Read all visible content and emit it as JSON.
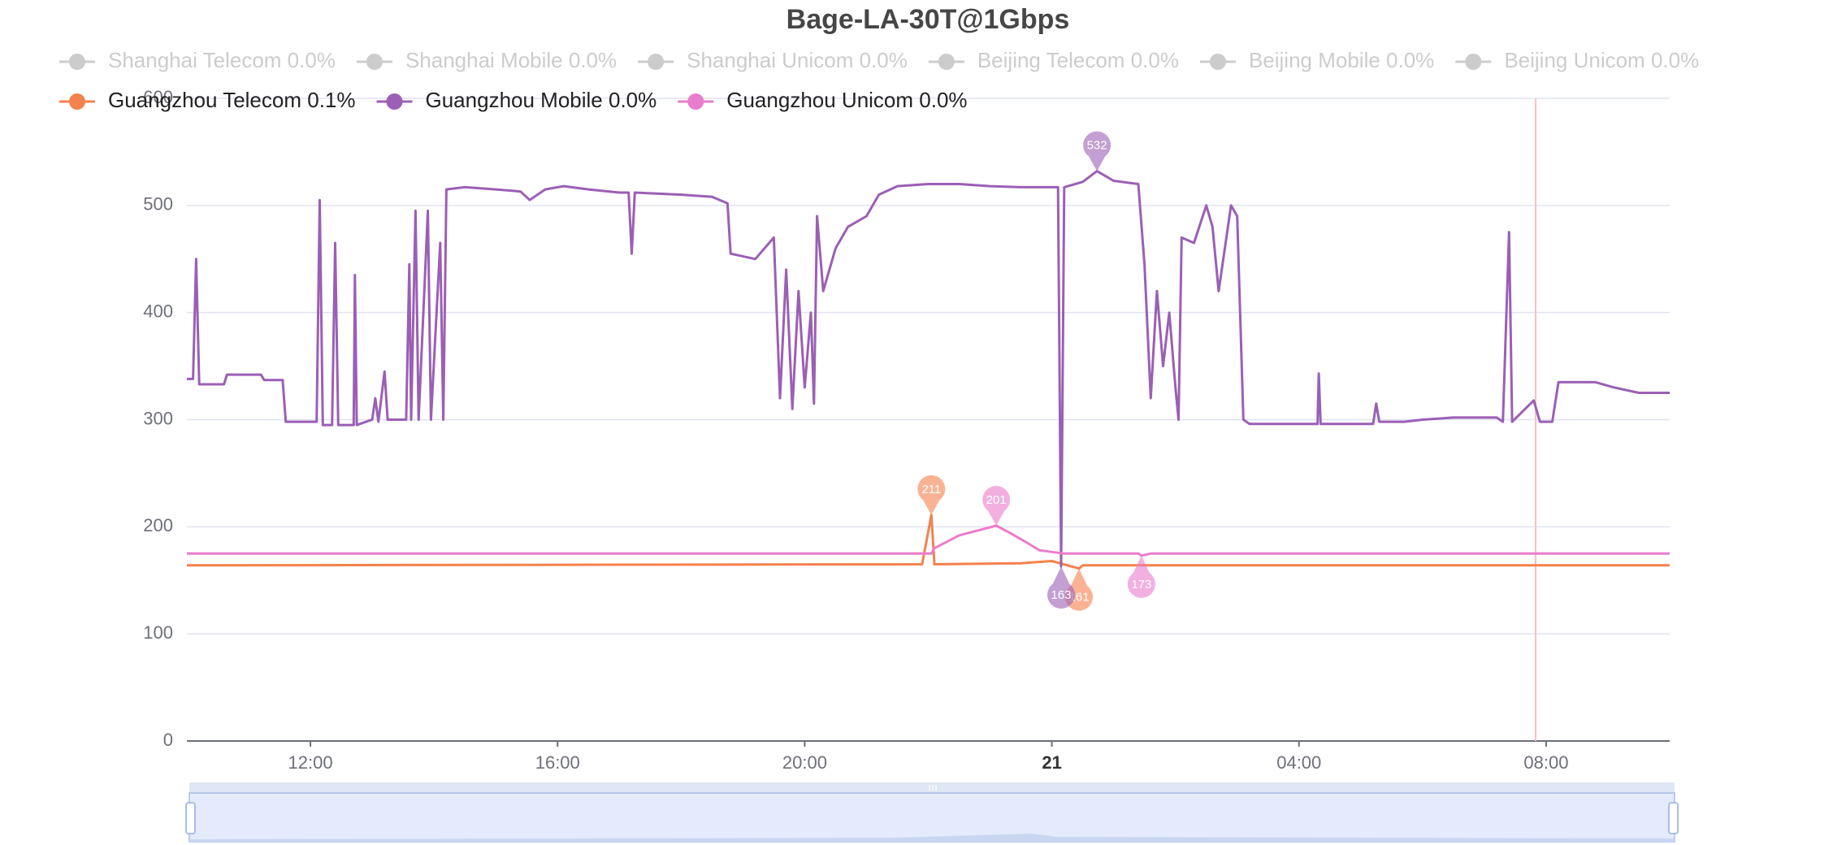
{
  "chart_data": {
    "type": "line",
    "title": "Bage-LA-30T@1Gbps",
    "xlim": [
      10,
      34
    ],
    "xticks": [
      {
        "value": 12,
        "label": "12:00"
      },
      {
        "value": 16,
        "label": "16:00"
      },
      {
        "value": 20,
        "label": "20:00"
      },
      {
        "value": 24,
        "label": "21",
        "bold": true
      },
      {
        "value": 28,
        "label": "04:00"
      },
      {
        "value": 32,
        "label": "08:00"
      }
    ],
    "ylim": [
      0,
      600
    ],
    "yticks": [
      0,
      100,
      200,
      300,
      400,
      500,
      600
    ],
    "grid": true,
    "legend": "top",
    "series": [
      {
        "name": "Shanghai Telecom 0.0%",
        "color": "#cccccc",
        "selected": false
      },
      {
        "name": "Shanghai Mobile 0.0%",
        "color": "#cccccc",
        "selected": false
      },
      {
        "name": "Shanghai Unicom 0.0%",
        "color": "#cccccc",
        "selected": false
      },
      {
        "name": "Beijing Telecom 0.0%",
        "color": "#cccccc",
        "selected": false
      },
      {
        "name": "Beijing Mobile 0.0%",
        "color": "#cccccc",
        "selected": false
      },
      {
        "name": "Beijing Unicom 0.0%",
        "color": "#cccccc",
        "selected": false
      },
      {
        "name": "Guangzhou Telecom 0.1%",
        "color": "#f5814c",
        "selected": true,
        "x": [
          10,
          21.9,
          22.05,
          22.1,
          23.5,
          24.0,
          24.44,
          24.5,
          34
        ],
        "values": [
          164,
          165,
          211,
          165,
          166,
          168,
          161,
          164,
          164
        ],
        "mark_points": [
          {
            "x": 22.05,
            "value": 211,
            "kind": "max"
          },
          {
            "x": 24.44,
            "value": 161,
            "kind": "min"
          }
        ]
      },
      {
        "name": "Guangzhou Mobile 0.0%",
        "color": "#9b5fb5",
        "selected": true,
        "x": [
          10.0,
          10.1,
          10.15,
          10.2,
          10.6,
          10.65,
          11.2,
          11.25,
          11.55,
          11.6,
          12.1,
          12.15,
          12.2,
          12.35,
          12.4,
          12.45,
          12.7,
          12.72,
          12.75,
          13.0,
          13.05,
          13.1,
          13.2,
          13.25,
          13.55,
          13.6,
          13.63,
          13.7,
          13.75,
          13.9,
          13.95,
          14.1,
          14.15,
          14.2,
          14.5,
          15.0,
          15.4,
          15.55,
          15.8,
          16.1,
          16.5,
          17.0,
          17.15,
          17.2,
          17.25,
          18.0,
          18.5,
          18.75,
          18.8,
          19.2,
          19.5,
          19.6,
          19.7,
          19.8,
          19.9,
          20.0,
          20.1,
          20.15,
          20.2,
          20.3,
          20.5,
          20.7,
          21.0,
          21.2,
          21.5,
          22.0,
          22.5,
          23.0,
          23.5,
          24.1,
          24.15,
          24.2,
          24.5,
          24.73,
          25.0,
          25.4,
          25.5,
          25.6,
          25.7,
          25.8,
          25.9,
          26.0,
          26.05,
          26.1,
          26.3,
          26.5,
          26.6,
          26.7,
          26.9,
          27.0,
          27.1,
          27.2,
          28.0,
          28.3,
          28.32,
          28.35,
          29.0,
          29.2,
          29.25,
          29.3,
          29.7,
          30.0,
          30.5,
          31.2,
          31.3,
          31.4,
          31.45,
          31.8,
          31.9,
          32.1,
          32.2,
          32.8,
          33.1,
          33.5,
          34.0
        ],
        "values": [
          338,
          338,
          450,
          333,
          333,
          342,
          342,
          337,
          337,
          298,
          298,
          505,
          295,
          295,
          465,
          295,
          295,
          435,
          295,
          300,
          320,
          298,
          345,
          300,
          300,
          445,
          300,
          495,
          300,
          495,
          300,
          465,
          300,
          515,
          517,
          515,
          513,
          505,
          515,
          518,
          515,
          512,
          512,
          455,
          512,
          510,
          508,
          502,
          455,
          450,
          470,
          320,
          440,
          310,
          420,
          330,
          400,
          315,
          490,
          420,
          460,
          480,
          490,
          510,
          518,
          520,
          520,
          518,
          517,
          517,
          163,
          517,
          522,
          532,
          523,
          520,
          445,
          320,
          420,
          350,
          400,
          330,
          300,
          470,
          465,
          500,
          480,
          420,
          500,
          490,
          300,
          296,
          296,
          296,
          343,
          296,
          296,
          296,
          315,
          298,
          298,
          300,
          302,
          302,
          298,
          475,
          298,
          318,
          298,
          298,
          335,
          335,
          330,
          325,
          325
        ],
        "mark_points": [
          {
            "x": 24.73,
            "value": 532,
            "kind": "max"
          },
          {
            "x": 24.15,
            "value": 163,
            "kind": "min"
          }
        ]
      },
      {
        "name": "Guangzhou Unicom 0.0%",
        "color": "#ea7ccc",
        "selected": true,
        "x": [
          10,
          22.05,
          22.1,
          22.5,
          23.1,
          23.3,
          23.6,
          23.8,
          24.2,
          25.4,
          25.45,
          25.6,
          34
        ],
        "values": [
          175,
          175,
          180,
          192,
          201,
          195,
          185,
          178,
          175,
          175,
          173,
          175,
          175
        ],
        "mark_points": [
          {
            "x": 23.1,
            "value": 201,
            "kind": "max"
          },
          {
            "x": 25.45,
            "value": 173,
            "kind": "min"
          }
        ]
      }
    ]
  }
}
